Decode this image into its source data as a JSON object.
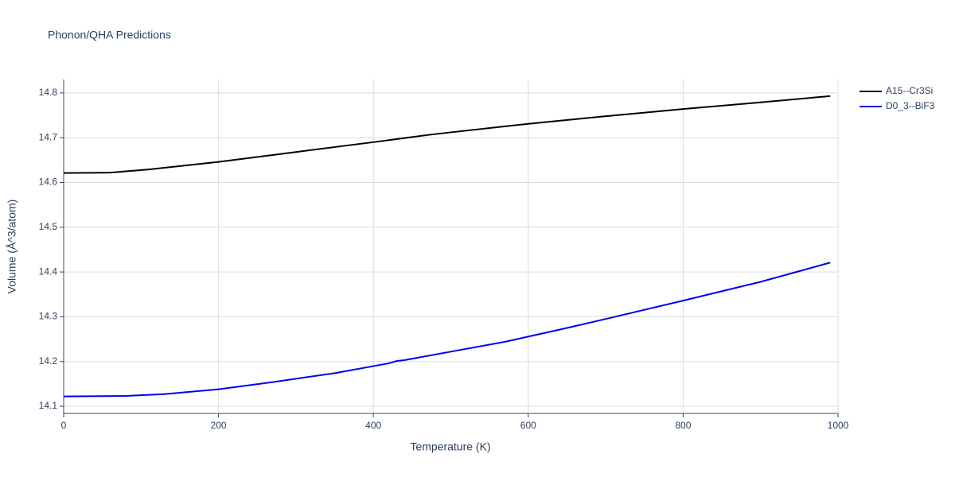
{
  "chart_data": {
    "type": "line",
    "title": "Phonon/QHA Predictions",
    "x_label": "Temperature (K)",
    "y_label": "Volume (Å^3/atom)",
    "series": [
      {
        "name": "A15--Cr3Si",
        "color": "#000000",
        "x": [
          0,
          60,
          110,
          200,
          300,
          400,
          470,
          500,
          600,
          700,
          800,
          900,
          990
        ],
        "values": [
          14.621,
          14.622,
          14.629,
          14.646,
          14.668,
          14.69,
          14.706,
          14.712,
          14.731,
          14.748,
          14.764,
          14.779,
          14.793
        ]
      },
      {
        "name": "D0_3--BiF3",
        "color": "#0000ee",
        "x": [
          0,
          80,
          130,
          200,
          270,
          350,
          420,
          430,
          440,
          500,
          570,
          650,
          700,
          800,
          900,
          990
        ],
        "values": [
          14.122,
          14.123,
          14.127,
          14.138,
          14.154,
          14.174,
          14.196,
          14.201,
          14.203,
          14.222,
          14.244,
          14.275,
          14.295,
          14.336,
          14.378,
          14.421
        ]
      }
    ],
    "xlim": [
      0,
      1000
    ],
    "xticks": [
      0,
      200,
      400,
      600,
      800,
      1000
    ],
    "ylim": [
      14.084,
      14.83
    ],
    "yticks": [
      14.1,
      14.2,
      14.3,
      14.4,
      14.5,
      14.6,
      14.7,
      14.8
    ],
    "grid": true,
    "legend": "right"
  }
}
